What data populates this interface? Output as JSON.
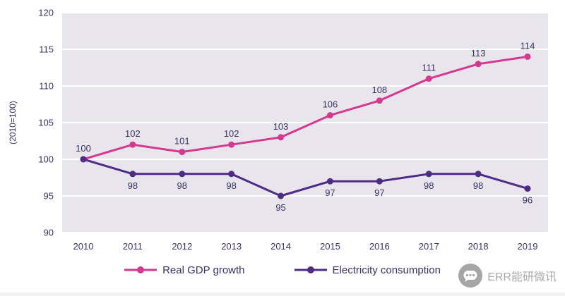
{
  "chart_data": {
    "type": "line",
    "title": "",
    "ylabel": "(2010=100)",
    "xlabel": "",
    "x": [
      "2010",
      "2011",
      "2012",
      "2013",
      "2014",
      "2015",
      "2016",
      "2017",
      "2018",
      "2019"
    ],
    "ylim": [
      90,
      120
    ],
    "ytick_step": 5,
    "grid": "horizontal-white-on-gray",
    "legend_position": "bottom",
    "series": [
      {
        "name": "Real GDP growth",
        "color": "#d6378f",
        "label_position": "above",
        "values": [
          100,
          102,
          101,
          102,
          103,
          106,
          108,
          111,
          113,
          114
        ],
        "labels": [
          "100",
          "102",
          "101",
          "102",
          "103",
          "106",
          "108",
          "111",
          "113",
          "114"
        ]
      },
      {
        "name": "Electricity consumption",
        "color": "#4f2b88",
        "label_position": "below",
        "values": [
          100,
          98,
          98,
          98,
          95,
          97,
          97,
          98,
          98,
          96
        ],
        "labels": [
          "",
          "98",
          "98",
          "98",
          "95",
          "97",
          "97",
          "98",
          "98",
          "96"
        ]
      }
    ]
  },
  "colors": {
    "plot_background": "#e8e6ec",
    "gridline": "#ffffff",
    "axis_text": "#3a3264",
    "watermark_gray": "#a6a6a6"
  },
  "watermark": {
    "text": "ERR能研微讯",
    "icon": "wechat-icon"
  }
}
